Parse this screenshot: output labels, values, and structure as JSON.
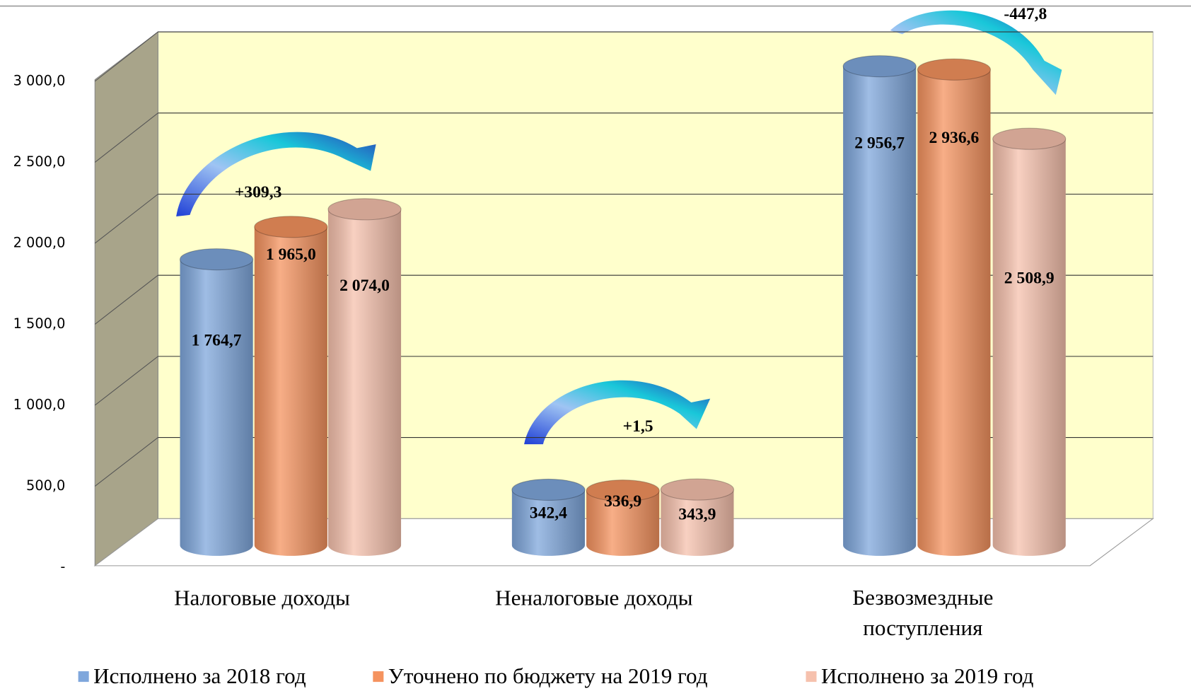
{
  "chart_data": {
    "type": "bar",
    "categories": [
      "Налоговые доходы",
      "Неналоговые доходы",
      "Безвозмездные поступления"
    ],
    "series": [
      {
        "name": "Исполнено за 2018 год",
        "color": "#7fa7dc",
        "values": [
          1764.7,
          342.4,
          2956.7
        ],
        "value_labels": [
          "1 764,7",
          "342,4",
          "2 956,7"
        ]
      },
      {
        "name": "Уточнено по бюджету  на 2019 год",
        "color": "#f5935f",
        "values": [
          1965.0,
          336.9,
          2936.6
        ],
        "value_labels": [
          "1 965,0",
          "336,9",
          "2 936,6"
        ]
      },
      {
        "name": "Исполнено за 2019 год",
        "color": "#f6c1ad",
        "values": [
          2074.0,
          343.9,
          2508.9
        ],
        "value_labels": [
          "2 074,0",
          "343,9",
          "2 508,9"
        ]
      }
    ],
    "ylim": [
      0,
      3000
    ],
    "yticks": [
      {
        "value": 0,
        "label": "-"
      },
      {
        "value": 500,
        "label": "500,0"
      },
      {
        "value": 1000,
        "label": "1 000,0"
      },
      {
        "value": 1500,
        "label": "1 500,0"
      },
      {
        "value": 2000,
        "label": "2 000,0"
      },
      {
        "value": 2500,
        "label": "2 500,0"
      },
      {
        "value": 3000,
        "label": "3 000,0"
      }
    ],
    "grid": true,
    "annotations": [
      "+309,3",
      "+1,5",
      "-447,8"
    ],
    "legend": "bottom"
  }
}
